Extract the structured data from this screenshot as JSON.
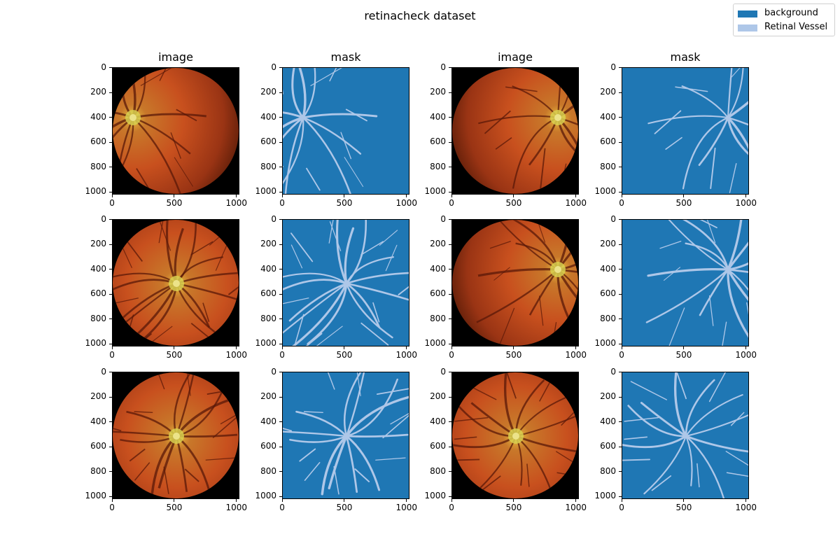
{
  "figure": {
    "title": "retinacheck dataset"
  },
  "legend": {
    "entries": [
      {
        "label": "background",
        "color": "#1f77b4"
      },
      {
        "label": "Retinal Vessel",
        "color": "#aec7e8"
      }
    ]
  },
  "columns": [
    {
      "title": "image",
      "kind": "fundus-image"
    },
    {
      "title": "mask",
      "kind": "vessel-mask"
    },
    {
      "title": "image",
      "kind": "fundus-image"
    },
    {
      "title": "mask",
      "kind": "vessel-mask"
    }
  ],
  "axes": {
    "x_ticks": [
      "0",
      "500",
      "1000"
    ],
    "y_ticks": [
      "0",
      "200",
      "400",
      "600",
      "800",
      "1000"
    ]
  },
  "samples": [
    {
      "optic_disc": "left"
    },
    {
      "optic_disc": "right"
    },
    {
      "optic_disc": "center"
    },
    {
      "optic_disc": "right"
    },
    {
      "optic_disc": "center"
    },
    {
      "optic_disc": "center"
    }
  ]
}
